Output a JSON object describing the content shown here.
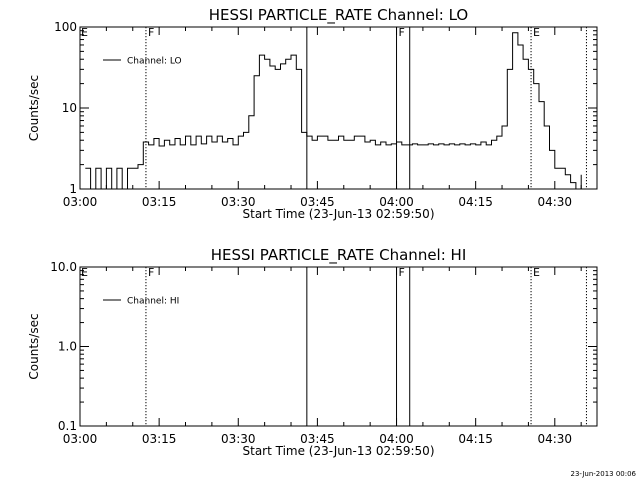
{
  "footer": {
    "timestamp": "23-Jun-2013 00:06"
  },
  "chart_data": [
    {
      "type": "line",
      "title": "HESSI PARTICLE_RATE Channel: LO",
      "xlabel": "Start Time (23-Jun-13 02:59:50)",
      "ylabel": "Counts/sec",
      "yscale": "log",
      "xlim": [
        0,
        98
      ],
      "ylim": [
        1,
        100
      ],
      "xticks": [
        0,
        15,
        30,
        45,
        60,
        75,
        90
      ],
      "xtick_labels": [
        "03:00",
        "03:15",
        "03:30",
        "03:45",
        "04:00",
        "04:15",
        "04:30"
      ],
      "yticks": [
        1,
        10,
        100
      ],
      "ytick_labels": [
        "1",
        "10",
        "100"
      ],
      "legend": {
        "placement": "top-left",
        "label": "Channel: LO"
      },
      "series": [
        {
          "name": "Channel: LO",
          "x": [
            1,
            2,
            3,
            4,
            5,
            6,
            7,
            8,
            9,
            10,
            11,
            12,
            13,
            14,
            15,
            16,
            17,
            18,
            19,
            20,
            21,
            22,
            23,
            24,
            25,
            26,
            27,
            28,
            29,
            30,
            31,
            32,
            33,
            34,
            35,
            36,
            37,
            38,
            39,
            40,
            41,
            42,
            43,
            44,
            45,
            46,
            47,
            48,
            49,
            50,
            51,
            52,
            53,
            54,
            55,
            56,
            57,
            58,
            59,
            60,
            61,
            62,
            63,
            64,
            65,
            66,
            67,
            68,
            69,
            70,
            71,
            72,
            73,
            74,
            75,
            76,
            77,
            78,
            79,
            80,
            81,
            82,
            83,
            84,
            85,
            86,
            87,
            88,
            89,
            90,
            91,
            92,
            93,
            94,
            95
          ],
          "y": [
            1.8,
            1,
            1.8,
            1,
            1.8,
            1,
            1.8,
            1,
            1.8,
            1.8,
            2,
            3.8,
            3.5,
            4.2,
            3.4,
            4,
            3.5,
            4.2,
            3.5,
            4.5,
            3.5,
            4.5,
            3.6,
            4.5,
            3.8,
            4.5,
            3.8,
            4.2,
            3.5,
            4.5,
            5,
            8,
            25,
            45,
            40,
            33,
            30,
            35,
            40,
            45,
            30,
            5,
            4.5,
            4,
            4.5,
            4.5,
            4,
            4,
            4.5,
            4,
            4,
            4.5,
            4.5,
            3.8,
            4,
            3.5,
            3.8,
            3.5,
            3.6,
            3.8,
            3.5,
            3.5,
            3.6,
            3.5,
            3.5,
            3.6,
            3.5,
            3.6,
            3.5,
            3.6,
            3.5,
            3.6,
            3.5,
            3.6,
            3.5,
            3.8,
            3.5,
            4,
            4.5,
            6,
            30,
            85,
            60,
            40,
            30,
            20,
            12,
            6,
            3,
            1.8,
            1.8,
            1.5,
            1.2,
            1,
            1.5
          ]
        }
      ],
      "vertical_lines": [
        {
          "x": 12.5,
          "style": "dotted",
          "label": "F"
        },
        {
          "x": 43,
          "style": "solid",
          "label": ""
        },
        {
          "x": 60,
          "style": "solid",
          "label": "F"
        },
        {
          "x": 62.5,
          "style": "solid",
          "label": ""
        },
        {
          "x": 85.5,
          "style": "dotted",
          "label": "E"
        },
        {
          "x": 96,
          "style": "dotted",
          "label": ""
        }
      ],
      "left_edge_label": "E"
    },
    {
      "type": "line",
      "title": "HESSI PARTICLE_RATE Channel: HI",
      "xlabel": "Start Time (23-Jun-13 02:59:50)",
      "ylabel": "Counts/sec",
      "yscale": "log",
      "xlim": [
        0,
        98
      ],
      "ylim": [
        0.1,
        10
      ],
      "xticks": [
        0,
        15,
        30,
        45,
        60,
        75,
        90
      ],
      "xtick_labels": [
        "03:00",
        "03:15",
        "03:30",
        "03:45",
        "04:00",
        "04:15",
        "04:30"
      ],
      "yticks": [
        0.1,
        1,
        10
      ],
      "ytick_labels": [
        "0.1",
        "1.0",
        "10.0"
      ],
      "legend": {
        "placement": "top-left",
        "label": "Channel: HI"
      },
      "series": [
        {
          "name": "Channel: HI",
          "x": [],
          "y": []
        }
      ],
      "vertical_lines": [
        {
          "x": 12.5,
          "style": "dotted",
          "label": "F"
        },
        {
          "x": 43,
          "style": "solid",
          "label": ""
        },
        {
          "x": 60,
          "style": "solid",
          "label": "F"
        },
        {
          "x": 62.5,
          "style": "solid",
          "label": ""
        },
        {
          "x": 85.5,
          "style": "dotted",
          "label": "E"
        },
        {
          "x": 96,
          "style": "dotted",
          "label": ""
        }
      ],
      "left_edge_label": "E"
    }
  ]
}
